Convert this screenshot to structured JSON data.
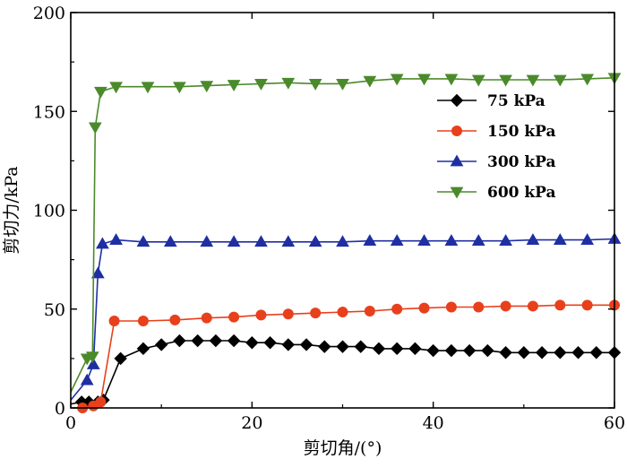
{
  "chart_data": {
    "type": "line",
    "xlabel": "剪切角/(°)",
    "ylabel": "剪切力/kPa",
    "xlim": [
      0,
      60
    ],
    "ylim": [
      0,
      200
    ],
    "xticks": [
      0,
      20,
      40,
      60
    ],
    "yticks": [
      0,
      50,
      100,
      150,
      200
    ],
    "grid": false,
    "legend_position": "top-right",
    "series": [
      {
        "name": "75 kPa",
        "color": "#000000",
        "marker": "diamond",
        "x": [
          0,
          1.2,
          2,
          3,
          3.6,
          5.5,
          8,
          10,
          12,
          14,
          16,
          18,
          20,
          22,
          24,
          26,
          28,
          30,
          32,
          34,
          36,
          38,
          40,
          42,
          44,
          46,
          48,
          50,
          52,
          54,
          56,
          58,
          60
        ],
        "y": [
          2,
          3,
          3,
          3,
          4,
          25,
          30,
          32,
          34,
          34,
          34,
          34,
          33,
          33,
          32,
          32,
          31,
          31,
          31,
          30,
          30,
          30,
          29,
          29,
          29,
          29,
          28,
          28,
          28,
          28,
          28,
          28,
          28
        ]
      },
      {
        "name": "150 kPa",
        "color": "#e8401c",
        "marker": "circle",
        "x": [
          0,
          1.3,
          2.5,
          3.3,
          4.8,
          8,
          11.5,
          15,
          18,
          21,
          24,
          27,
          30,
          33,
          36,
          39,
          42,
          45,
          48,
          51,
          54,
          57,
          60
        ],
        "y": [
          0,
          0,
          1,
          3,
          44,
          44,
          44.5,
          45.5,
          46,
          47,
          47.5,
          48,
          48.5,
          49,
          50,
          50.5,
          51,
          51,
          51.5,
          51.5,
          52,
          52,
          52
        ]
      },
      {
        "name": "300 kPa",
        "color": "#1f2fa3",
        "marker": "triangle-up",
        "x": [
          0,
          1.8,
          2.5,
          3,
          3.5,
          5,
          8,
          11,
          15,
          18,
          21,
          24,
          27,
          30,
          33,
          36,
          39,
          42,
          45,
          48,
          51,
          54,
          57,
          60
        ],
        "y": [
          4,
          14,
          22,
          68,
          83,
          85,
          84,
          84,
          84,
          84,
          84,
          84,
          84,
          84,
          84.5,
          84.5,
          84.5,
          84.5,
          84.5,
          84.5,
          85,
          85,
          85,
          85.5
        ]
      },
      {
        "name": "600 kPa",
        "color": "#4b8a2b",
        "marker": "triangle-down",
        "x": [
          0,
          1.8,
          2.4,
          2.7,
          3.3,
          5,
          8.5,
          12,
          15,
          18,
          21,
          24,
          27,
          30,
          33,
          36,
          39,
          42,
          45,
          48,
          51,
          54,
          57,
          60
        ],
        "y": [
          8,
          25,
          26,
          142,
          160,
          162.5,
          162.5,
          162.5,
          163,
          163.5,
          164,
          164.5,
          164,
          164,
          165.5,
          166.5,
          166.5,
          166.5,
          166,
          166,
          166,
          166,
          166.5,
          167
        ]
      }
    ]
  }
}
